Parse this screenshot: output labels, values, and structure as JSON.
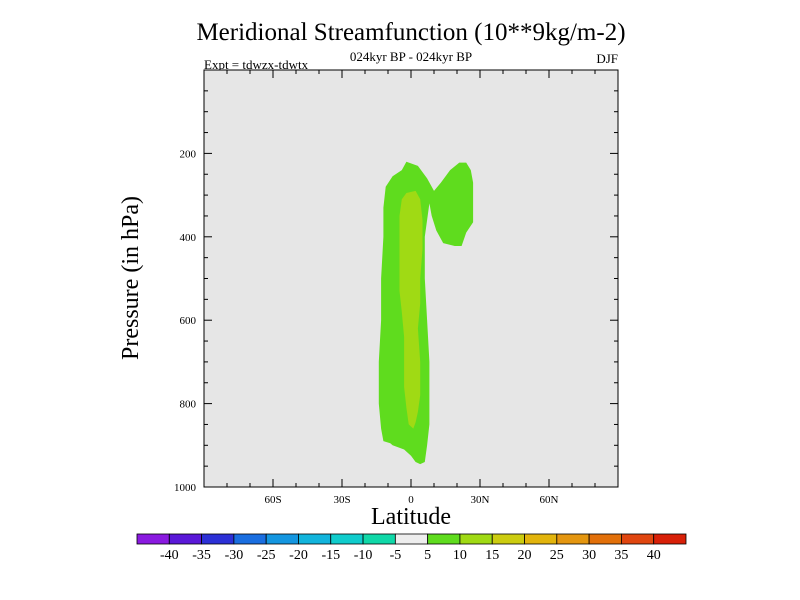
{
  "chart_data": {
    "type": "heatmap",
    "title": "Meridional Streamfunction (10**9kg/m-2)",
    "subtitle_center": "024kyr BP - 024kyr BP",
    "subtitle_left": "Expt = tdwzx-tdwtx",
    "subtitle_right": "DJF",
    "xlabel": "Latitude",
    "ylabel": "Pressure (in hPa)",
    "xlim": [
      -90,
      90
    ],
    "ylim": [
      1000,
      0
    ],
    "x_ticks": [
      {
        "value": -60,
        "label": "60S"
      },
      {
        "value": -30,
        "label": "30S"
      },
      {
        "value": 0,
        "label": "0"
      },
      {
        "value": 30,
        "label": "30N"
      },
      {
        "value": 60,
        "label": "60N"
      }
    ],
    "y_ticks": [
      {
        "value": 200,
        "label": "200"
      },
      {
        "value": 400,
        "label": "400"
      },
      {
        "value": 600,
        "label": "600"
      },
      {
        "value": 800,
        "label": "800"
      },
      {
        "value": 1000,
        "label": "1000"
      }
    ],
    "background_color": "#e6e6e6",
    "contour_regions": [
      {
        "name": "level 5 to 10",
        "color": "#5fdc1e",
        "points": [
          [
            -8,
            255
          ],
          [
            -4,
            240
          ],
          [
            -2,
            220
          ],
          [
            3,
            230
          ],
          [
            7,
            260
          ],
          [
            10,
            290
          ],
          [
            13,
            270
          ],
          [
            17,
            240
          ],
          [
            21,
            222
          ],
          [
            24,
            222
          ],
          [
            26,
            240
          ],
          [
            27,
            270
          ],
          [
            27,
            330
          ],
          [
            27,
            365
          ],
          [
            24,
            390
          ],
          [
            22,
            422
          ],
          [
            19,
            422
          ],
          [
            14,
            415
          ],
          [
            11,
            385
          ],
          [
            9,
            350
          ],
          [
            8,
            320
          ],
          [
            6,
            400
          ],
          [
            6,
            500
          ],
          [
            7,
            600
          ],
          [
            8,
            700
          ],
          [
            8,
            850
          ],
          [
            7,
            900
          ],
          [
            6,
            940
          ],
          [
            4,
            945
          ],
          [
            2,
            940
          ],
          [
            0,
            925
          ],
          [
            -3,
            910
          ],
          [
            -8,
            900
          ],
          [
            -9,
            895
          ],
          [
            -12,
            890
          ],
          [
            -13,
            860
          ],
          [
            -14,
            800
          ],
          [
            -14,
            700
          ],
          [
            -13,
            600
          ],
          [
            -13,
            500
          ],
          [
            -12,
            400
          ],
          [
            -12,
            330
          ],
          [
            -11,
            280
          ]
        ]
      },
      {
        "name": "level 10 to 15",
        "color": "#a0da14",
        "points": [
          [
            -2,
            295
          ],
          [
            2,
            290
          ],
          [
            4,
            310
          ],
          [
            5,
            360
          ],
          [
            5,
            430
          ],
          [
            4,
            500
          ],
          [
            4,
            560
          ],
          [
            3,
            620
          ],
          [
            4,
            700
          ],
          [
            4,
            780
          ],
          [
            3,
            820
          ],
          [
            2,
            845
          ],
          [
            1,
            860
          ],
          [
            -1,
            850
          ],
          [
            -2,
            810
          ],
          [
            -3,
            760
          ],
          [
            -3,
            700
          ],
          [
            -3,
            640
          ],
          [
            -4,
            580
          ],
          [
            -5,
            530
          ],
          [
            -5,
            460
          ],
          [
            -5,
            400
          ],
          [
            -5,
            350
          ],
          [
            -4,
            310
          ]
        ]
      }
    ],
    "colorbar": {
      "labels": [
        "-40",
        "-35",
        "-30",
        "-25",
        "-20",
        "-15",
        "-10",
        "-5",
        "5",
        "10",
        "15",
        "20",
        "25",
        "30",
        "35",
        "40"
      ],
      "colors": [
        "#8a1ae0",
        "#5a18d8",
        "#2c30d6",
        "#1a6ee0",
        "#1496e0",
        "#12b4dc",
        "#10cccc",
        "#10d8a8",
        "#eeeeee",
        "#5fdc1e",
        "#a0da14",
        "#cccc10",
        "#e2b40c",
        "#e49610",
        "#e2700a",
        "#e04610",
        "#d82008"
      ]
    }
  }
}
